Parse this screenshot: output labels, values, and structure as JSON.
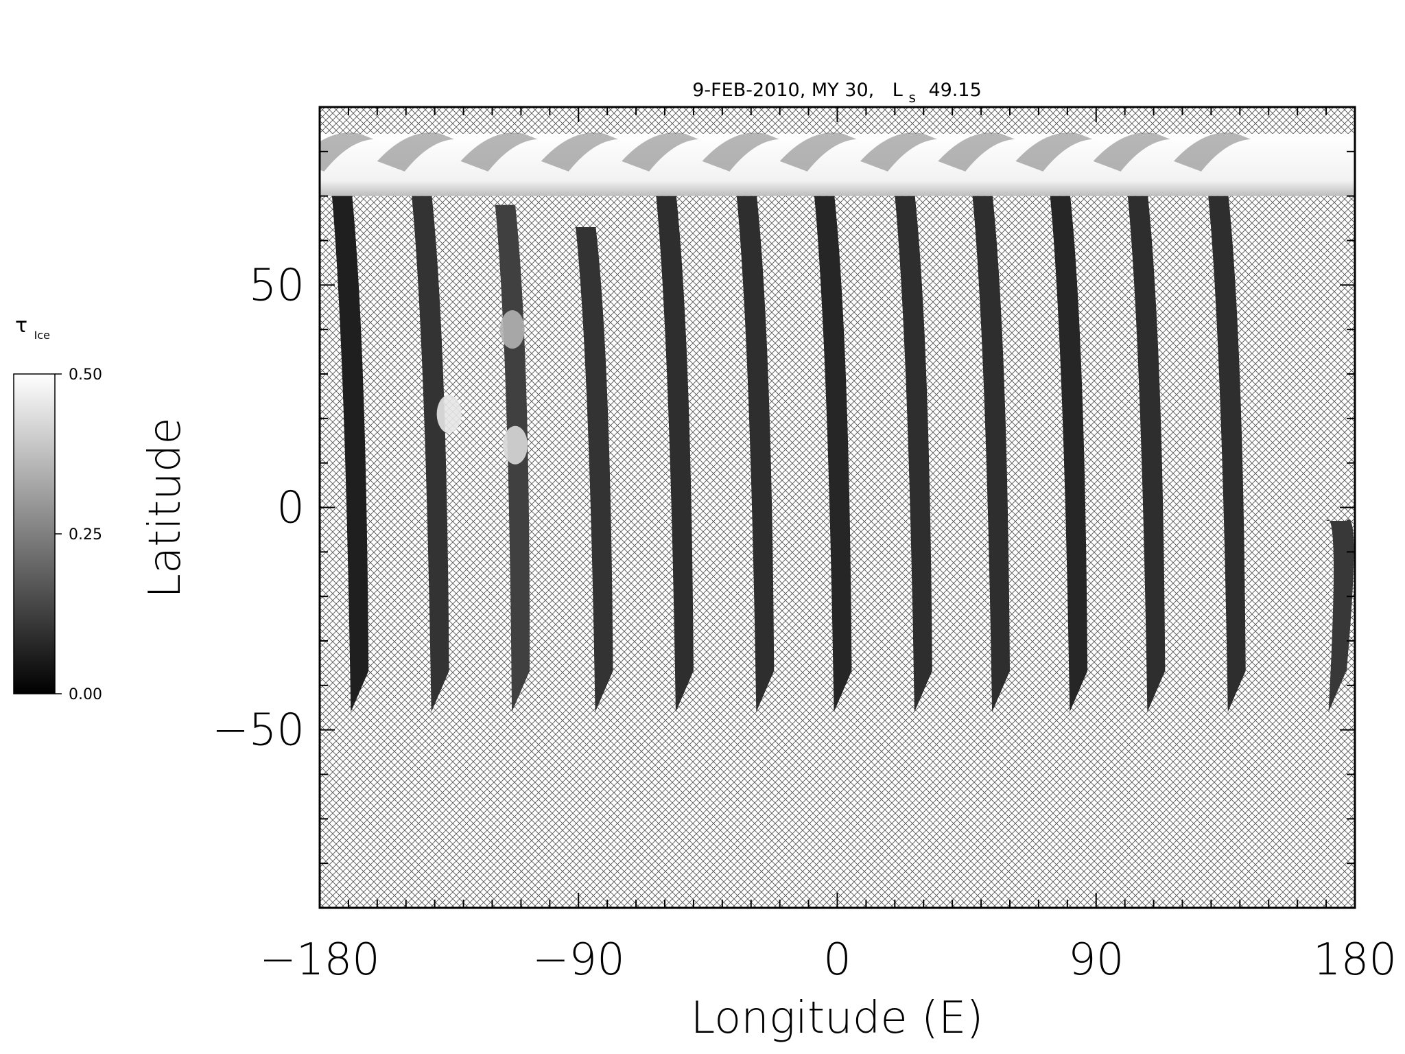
{
  "chart_data": {
    "type": "heatmap",
    "title_parts": {
      "prefix": "9-FEB-2010, MY 30,",
      "ls": "L",
      "ls_sub": "s",
      "ls_value": "49.15"
    },
    "xlabel": "Longitude (E)",
    "ylabel": "Latitude",
    "xlim": [
      -180,
      180
    ],
    "ylim": [
      -90,
      90
    ],
    "x_major_ticks": [
      -180,
      -90,
      0,
      90,
      180
    ],
    "x_tick_labels": [
      "−180",
      "−90",
      "0",
      "90",
      "180"
    ],
    "x_minor_step": 10,
    "y_major_ticks": [
      50,
      0,
      -50
    ],
    "y_tick_labels": [
      "50",
      "0",
      "−50"
    ],
    "y_minor_step": 10,
    "colorbar": {
      "label": "τ",
      "label_sub": "Ice",
      "min": 0.0,
      "max": 0.5,
      "ticks": [
        0.0,
        0.25,
        0.5
      ],
      "tick_labels": [
        "0.00",
        "0.25",
        "0.50"
      ],
      "colormap": "grayscale",
      "low_color": "#000000",
      "high_color": "#ffffff"
    },
    "no_data_fill": "crosshatch",
    "polar_cap_lat_range": [
      70,
      84
    ],
    "swaths": [
      {
        "lon_north": -176,
        "lon_south": -168,
        "lat_north": 72,
        "lat_south": -46,
        "brightness": 0.12
      },
      {
        "lon_north": -148,
        "lon_south": -140,
        "lat_north": 70,
        "lat_south": -46,
        "brightness": 0.2
      },
      {
        "lon_north": -119,
        "lon_south": -112,
        "lat_north": 68,
        "lat_south": -46,
        "brightness": 0.25
      },
      {
        "lon_north": -91,
        "lon_south": -83,
        "lat_north": 63,
        "lat_south": -46,
        "brightness": 0.2
      },
      {
        "lon_north": -63,
        "lon_south": -55,
        "lat_north": 70,
        "lat_south": -46,
        "brightness": 0.18
      },
      {
        "lon_north": -35,
        "lon_south": -27,
        "lat_north": 70,
        "lat_south": -46,
        "brightness": 0.18
      },
      {
        "lon_north": -8,
        "lon_south": 0,
        "lat_north": 70,
        "lat_south": -46,
        "brightness": 0.15
      },
      {
        "lon_north": 20,
        "lon_south": 28,
        "lat_north": 70,
        "lat_south": -46,
        "brightness": 0.18
      },
      {
        "lon_north": 47,
        "lon_south": 55,
        "lat_north": 70,
        "lat_south": -46,
        "brightness": 0.18
      },
      {
        "lon_north": 74,
        "lon_south": 82,
        "lat_north": 70,
        "lat_south": -46,
        "brightness": 0.15
      },
      {
        "lon_north": 101,
        "lon_south": 109,
        "lat_north": 70,
        "lat_south": -46,
        "brightness": 0.18
      },
      {
        "lon_north": 129,
        "lon_south": 137,
        "lat_north": 70,
        "lat_south": -46,
        "brightness": 0.18
      },
      {
        "lon_north": 170,
        "lon_south": 172,
        "lat_north": -3,
        "lat_south": -46,
        "brightness": 0.22
      }
    ],
    "bright_patches": [
      {
        "lon": -135,
        "lat": 21,
        "brightness": 0.9
      },
      {
        "lon": -112,
        "lat": 14,
        "brightness": 0.85
      },
      {
        "lon": -113,
        "lat": 40,
        "brightness": 0.7
      }
    ]
  }
}
